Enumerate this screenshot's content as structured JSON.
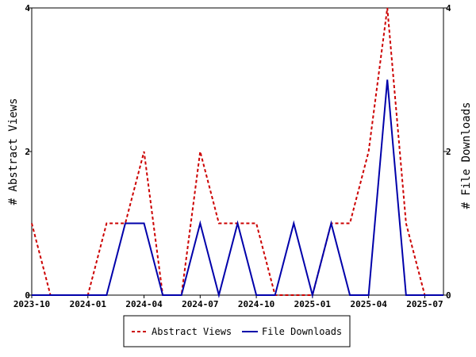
{
  "chart_data": {
    "type": "line",
    "x": [
      "2023-10",
      "2023-11",
      "2023-12",
      "2024-01",
      "2024-02",
      "2024-03",
      "2024-04",
      "2024-05",
      "2024-06",
      "2024-07",
      "2024-08",
      "2024-09",
      "2024-10",
      "2024-11",
      "2024-12",
      "2025-01",
      "2025-02",
      "2025-03",
      "2025-04",
      "2025-05",
      "2025-06",
      "2025-07",
      "2025-08"
    ],
    "x_ticks": [
      "2023-10",
      "2024-01",
      "2024-04",
      "2024-07",
      "2024-10",
      "2025-01",
      "2025-04",
      "2025-07"
    ],
    "series": [
      {
        "name": "Abstract Views",
        "axis": "left",
        "color": "#cc0000",
        "dash": "dashed",
        "values": [
          1,
          0,
          0,
          0,
          1,
          1,
          2,
          0,
          0,
          2,
          1,
          1,
          1,
          0,
          0,
          0,
          1,
          1,
          2,
          4,
          1,
          0,
          0
        ]
      },
      {
        "name": "File Downloads",
        "axis": "right",
        "color": "#0000aa",
        "dash": "solid",
        "values": [
          0,
          0,
          0,
          0,
          0,
          1,
          1,
          0,
          0,
          1,
          0,
          1,
          0,
          0,
          1,
          0,
          1,
          0,
          0,
          3,
          0,
          0,
          0
        ]
      }
    ],
    "ylabel": "# Abstract Views",
    "y2label": "# File Downloads",
    "ylim": [
      0,
      4
    ],
    "y2lim": [
      0,
      4
    ],
    "y_ticks": [
      "0",
      "2",
      "4"
    ],
    "y2_ticks": [
      "0",
      "2",
      "4"
    ],
    "legend": "bottom-center",
    "grid": false
  }
}
